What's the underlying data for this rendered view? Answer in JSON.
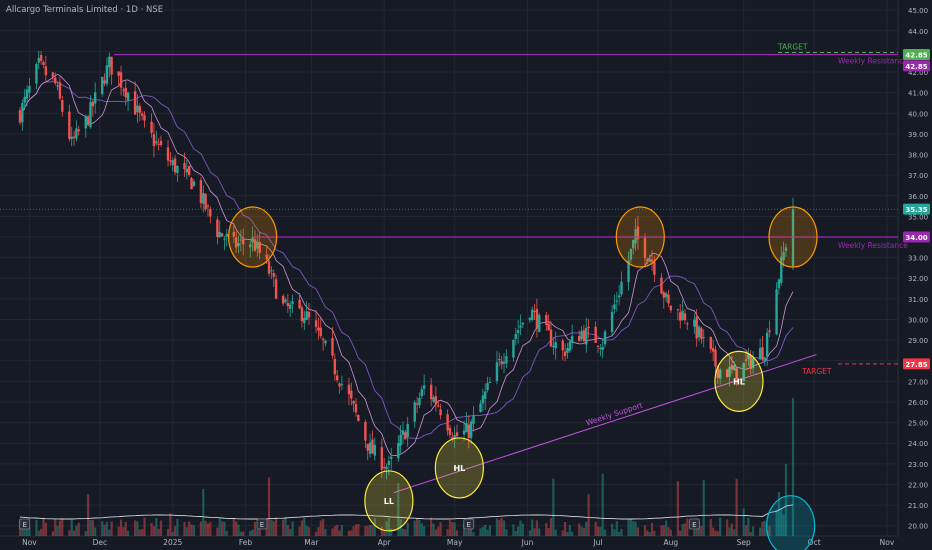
{
  "header": {
    "title": "Allcargo Terminals Limited · 1D · NSE"
  },
  "colors": {
    "background": "#161a25",
    "bull": "#26a69a",
    "bear": "#ef5350",
    "resistance": "#9c27b0",
    "support": "#c653e0",
    "target_green": "#4caf50",
    "target_red": "#f23645",
    "price_label": "#26a69a",
    "ma_short": "#ce93d8",
    "ma_long": "#7e57c2",
    "highlight_orange": "#ff9800",
    "highlight_yellow": "#ffeb3b",
    "highlight_cyan": "#00bcd4"
  },
  "chart_data": {
    "type": "candlestick",
    "ylim": [
      19.5,
      45.3
    ],
    "y_ticks": [
      "20.00",
      "21.00",
      "22.00",
      "23.00",
      "24.00",
      "25.00",
      "26.00",
      "27.00",
      "28.00",
      "29.00",
      "30.00",
      "31.00",
      "32.00",
      "33.00",
      "34.00",
      "35.00",
      "36.00",
      "37.00",
      "38.00",
      "39.00",
      "40.00",
      "41.00",
      "42.00",
      "43.00",
      "44.00",
      "45.00"
    ],
    "x_ticks": [
      "Nov",
      "Dec",
      "2025",
      "Feb",
      "Mar",
      "Apr",
      "May",
      "Jun",
      "Jul",
      "Aug",
      "Sep",
      "Oct",
      "Nov"
    ],
    "price_path": [
      {
        "date": "2024-10-28",
        "close": 40.0
      },
      {
        "date": "2024-11-05",
        "close": 42.3
      },
      {
        "date": "2024-11-12",
        "close": 41.4
      },
      {
        "date": "2024-11-19",
        "close": 38.5
      },
      {
        "date": "2024-11-26",
        "close": 39.8
      },
      {
        "date": "2024-12-05",
        "close": 42.4
      },
      {
        "date": "2024-12-13",
        "close": 41.0
      },
      {
        "date": "2024-12-20",
        "close": 39.3
      },
      {
        "date": "2024-12-31",
        "close": 37.6
      },
      {
        "date": "2025-01-10",
        "close": 36.6
      },
      {
        "date": "2025-01-20",
        "close": 34.3
      },
      {
        "date": "2025-01-27",
        "close": 33.6
      },
      {
        "date": "2025-02-04",
        "close": 33.8
      },
      {
        "date": "2025-02-10",
        "close": 32.6
      },
      {
        "date": "2025-02-17",
        "close": 30.6
      },
      {
        "date": "2025-02-26",
        "close": 30.3
      },
      {
        "date": "2025-03-06",
        "close": 28.8
      },
      {
        "date": "2025-03-17",
        "close": 26.2
      },
      {
        "date": "2025-03-26",
        "close": 23.7
      },
      {
        "date": "2025-04-03",
        "close": 22.8
      },
      {
        "date": "2025-04-10",
        "close": 24.6
      },
      {
        "date": "2025-04-18",
        "close": 26.7
      },
      {
        "date": "2025-04-24",
        "close": 25.9
      },
      {
        "date": "2025-05-01",
        "close": 24.3
      },
      {
        "date": "2025-05-07",
        "close": 24.6
      },
      {
        "date": "2025-05-15",
        "close": 26.6
      },
      {
        "date": "2025-05-23",
        "close": 28.6
      },
      {
        "date": "2025-06-02",
        "close": 30.5
      },
      {
        "date": "2025-06-09",
        "close": 29.3
      },
      {
        "date": "2025-06-16",
        "close": 28.4
      },
      {
        "date": "2025-06-24",
        "close": 29.4
      },
      {
        "date": "2025-07-03",
        "close": 28.9
      },
      {
        "date": "2025-07-10",
        "close": 31.4
      },
      {
        "date": "2025-07-17",
        "close": 34.0
      },
      {
        "date": "2025-07-24",
        "close": 32.9
      },
      {
        "date": "2025-07-31",
        "close": 30.6
      },
      {
        "date": "2025-08-07",
        "close": 30.2
      },
      {
        "date": "2025-08-14",
        "close": 29.1
      },
      {
        "date": "2025-08-21",
        "close": 27.6
      },
      {
        "date": "2025-08-28",
        "close": 27.4
      },
      {
        "date": "2025-09-04",
        "close": 28.0
      },
      {
        "date": "2025-09-10",
        "close": 28.6
      },
      {
        "date": "2025-09-15",
        "close": 31.6
      },
      {
        "date": "2025-09-22",
        "close": 35.3
      }
    ],
    "last_price": {
      "value": 35.35,
      "label": "35.35"
    },
    "levels": [
      {
        "value": 42.85,
        "label": "42.85",
        "text": "TARGET",
        "sub_text": "Weekly Resistance"
      },
      {
        "value": 34.0,
        "label": "34.00",
        "text": "Weekly Resistance"
      },
      {
        "value": 27.85,
        "label": "27.85",
        "text": "TARGET"
      }
    ],
    "support_line": {
      "text": "Weekly Support",
      "from": {
        "date": "2025-04-05",
        "value": 21.6
      },
      "to": {
        "date": "2025-10-02",
        "value": 28.3
      }
    },
    "annotations": [
      {
        "label": "LL",
        "date": "2025-04-03",
        "value": 21.2,
        "color": "yellow"
      },
      {
        "label": "HL",
        "date": "2025-05-03",
        "value": 22.8,
        "color": "yellow"
      },
      {
        "label": "HL",
        "date": "2025-08-30",
        "value": 27.0,
        "color": "yellow"
      },
      {
        "label": "",
        "date": "2025-02-04",
        "value": 34.0,
        "color": "orange"
      },
      {
        "label": "",
        "date": "2025-07-19",
        "value": 34.0,
        "color": "orange"
      },
      {
        "label": "",
        "date": "2025-09-22",
        "value": 34.0,
        "color": "orange"
      },
      {
        "label": "",
        "date": "2025-09-21",
        "value": 20.0,
        "color": "cyan"
      }
    ],
    "events": [
      {
        "label": "E",
        "date": "2024-10-30"
      },
      {
        "label": "E",
        "date": "2025-02-08"
      },
      {
        "label": "E",
        "date": "2025-05-07"
      },
      {
        "label": "E",
        "date": "2025-08-11"
      }
    ]
  }
}
